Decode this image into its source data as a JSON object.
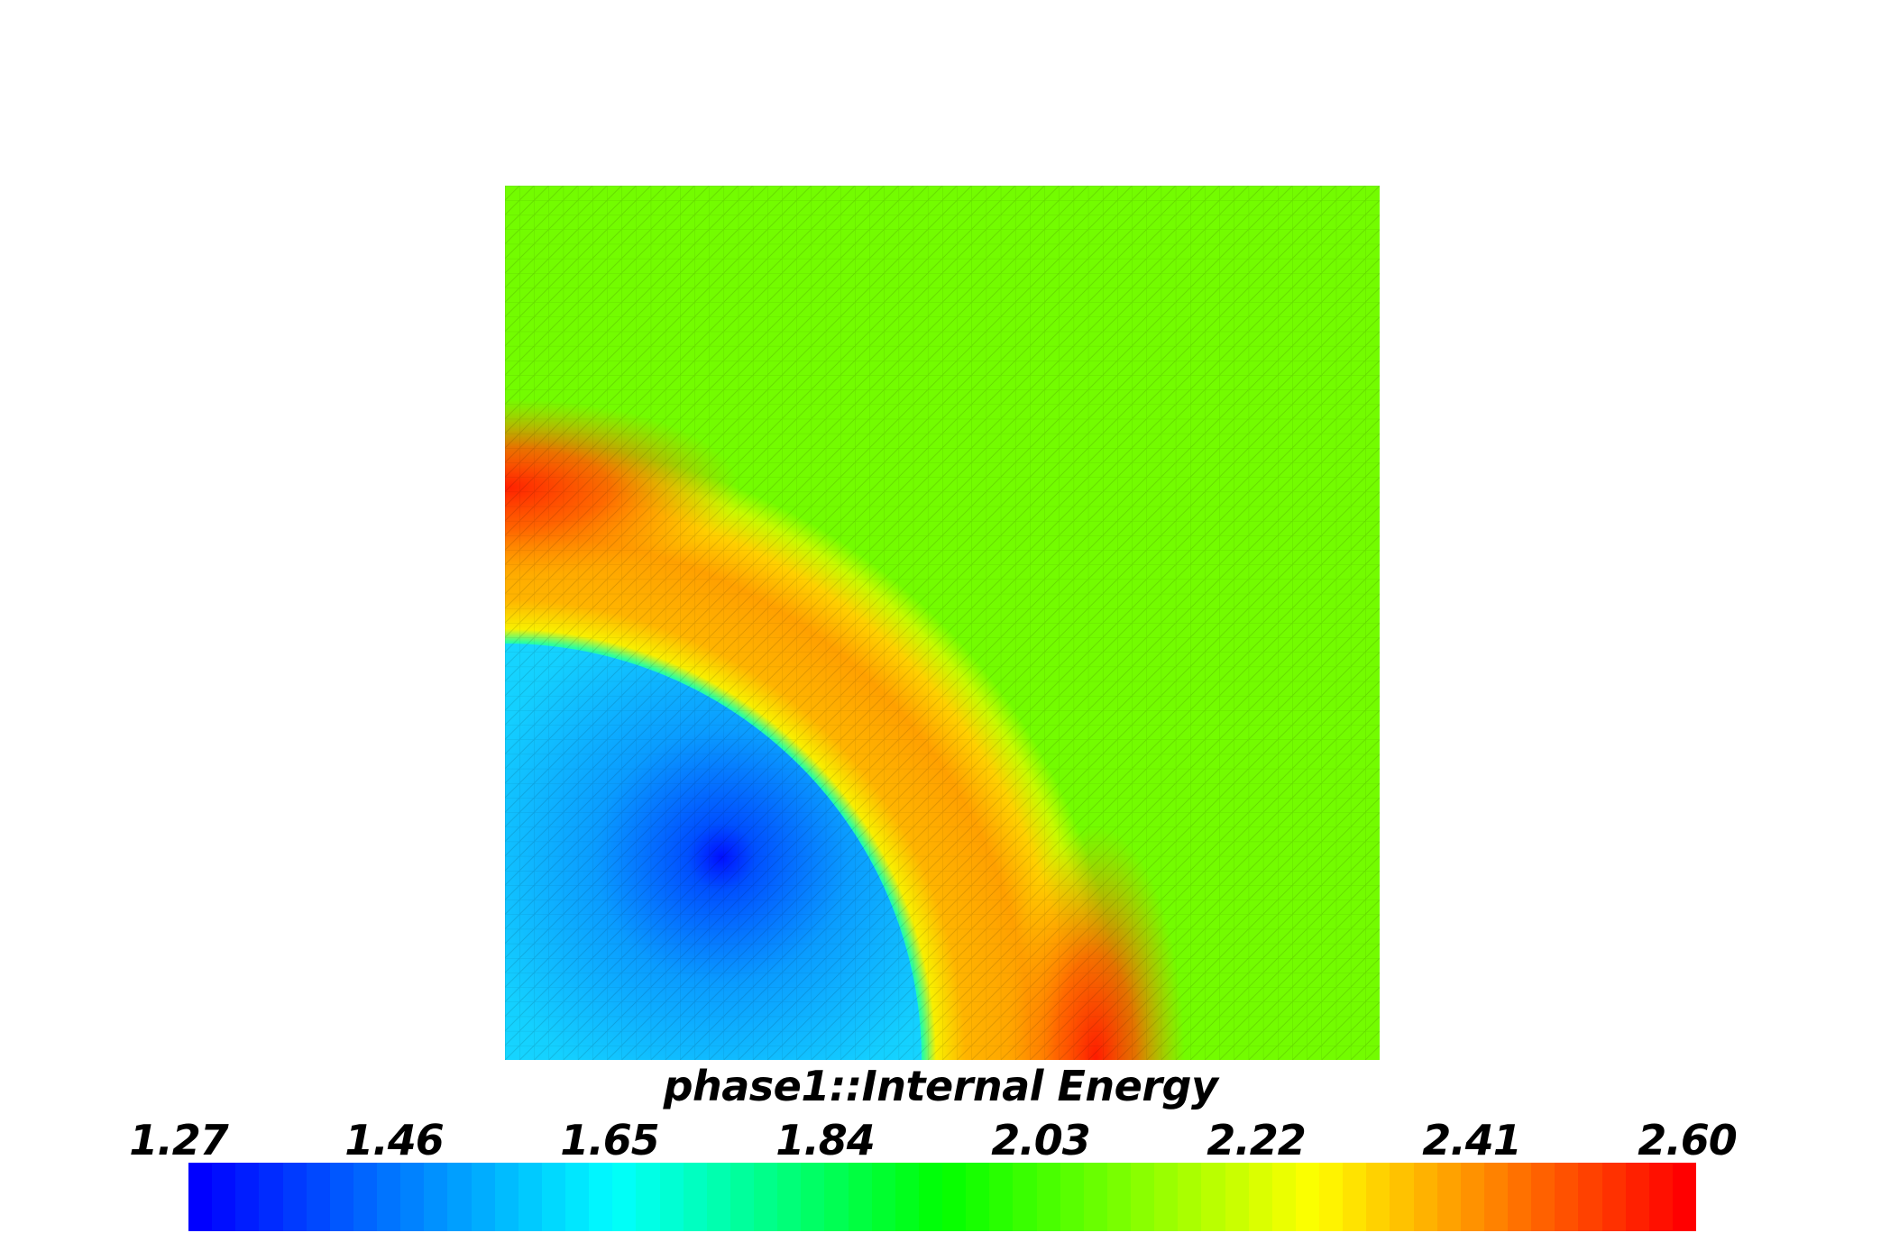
{
  "scalar_field": {
    "name": "phase1::Internal Energy",
    "range": [
      1.27,
      2.6
    ],
    "colormap": "rainbow (blue to red)"
  },
  "legend": {
    "title": "phase1::Internal Energy",
    "ticks": [
      "1.27",
      "1.46",
      "1.65",
      "1.84",
      "2.03",
      "2.22",
      "2.41",
      "2.60"
    ]
  },
  "colors": {
    "background": "#ffffff",
    "ambient_field": "#73fc00",
    "mesh_lines": "#000000"
  }
}
